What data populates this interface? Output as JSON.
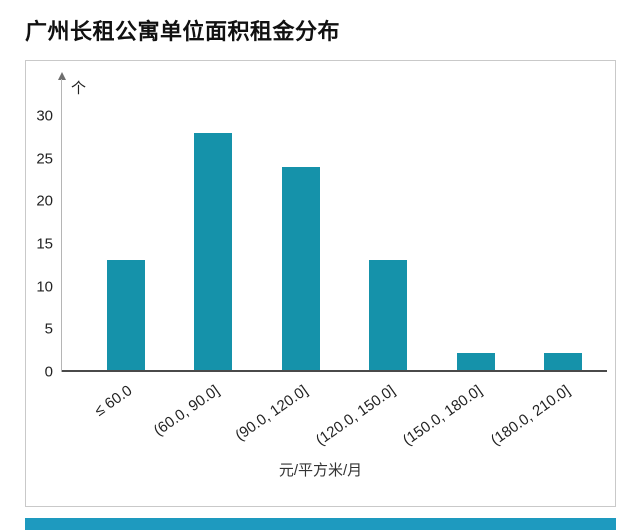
{
  "page": {
    "title": "广州长租公寓单位面积租金分布"
  },
  "chart_data": {
    "type": "bar",
    "title": "广州长租公寓单位面积租金分布",
    "categories": [
      "≤ 60.0",
      "(60.0, 90.0]",
      "(90.0, 120.0]",
      "(120.0, 150.0]",
      "(150.0, 180.0]",
      "(180.0, 210.0]"
    ],
    "values": [
      13,
      28,
      24,
      13,
      2,
      2
    ],
    "xlabel": "元/平方米/月",
    "ylabel": "个",
    "ylim": [
      0,
      30
    ],
    "yticks": [
      0,
      5,
      10,
      15,
      20,
      25,
      30
    ],
    "grid": false,
    "legend": "none",
    "bar_color": "#1592AA"
  },
  "colors": {
    "bar": "#1592AA",
    "bottom_accent": "#1E9ABF",
    "card_border": "#c9c9c9"
  }
}
